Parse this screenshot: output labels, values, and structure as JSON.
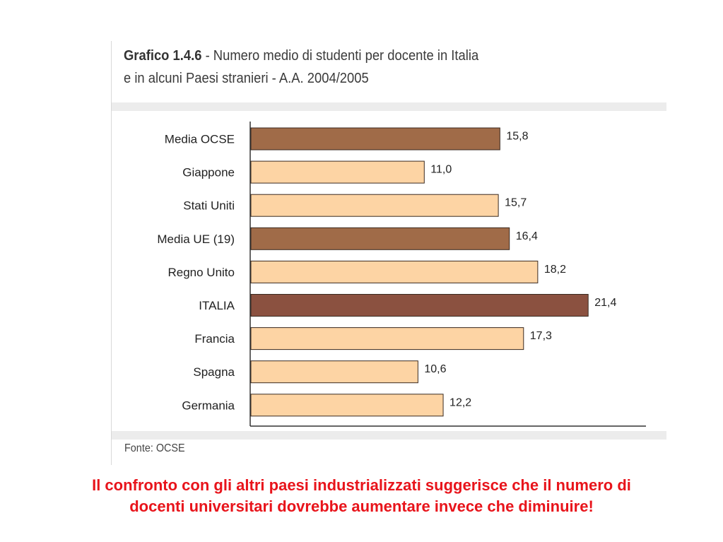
{
  "header": {
    "title_bold": "Grafico 1.4.6",
    "title_rest": " - Numero medio di studenti per docente in Italia",
    "title_line2": "e in alcuni Paesi stranieri - A.A. 2004/2005"
  },
  "source": "Fonte: OCSE",
  "caption": {
    "line1": "Il confronto con gli altri paesi industrializzati suggerisce che il numero di",
    "line2": "docenti universitari dovrebbe aumentare invece che diminuire!"
  },
  "colors": {
    "average": "#a06b48",
    "italy": "#8b5140",
    "country": "#fdd4a4",
    "border": "#3a2a20"
  },
  "chart_data": {
    "type": "bar",
    "orientation": "horizontal",
    "categories": [
      "Media OCSE",
      "Giappone",
      "Stati Uniti",
      "Media UE (19)",
      "Regno Unito",
      "ITALIA",
      "Francia",
      "Spagna",
      "Germania"
    ],
    "values": [
      15.8,
      11.0,
      15.7,
      16.4,
      18.2,
      21.4,
      17.3,
      10.6,
      12.2
    ],
    "value_labels": [
      "15,8",
      "11,0",
      "15,7",
      "16,4",
      "18,2",
      "21,4",
      "17,3",
      "10,6",
      "12,2"
    ],
    "groups": [
      "average",
      "country",
      "country",
      "average",
      "country",
      "italy",
      "country",
      "country",
      "country"
    ],
    "xlim": [
      0,
      25
    ],
    "title": "",
    "xlabel": "",
    "ylabel": "",
    "grid": false,
    "legend": "none"
  }
}
